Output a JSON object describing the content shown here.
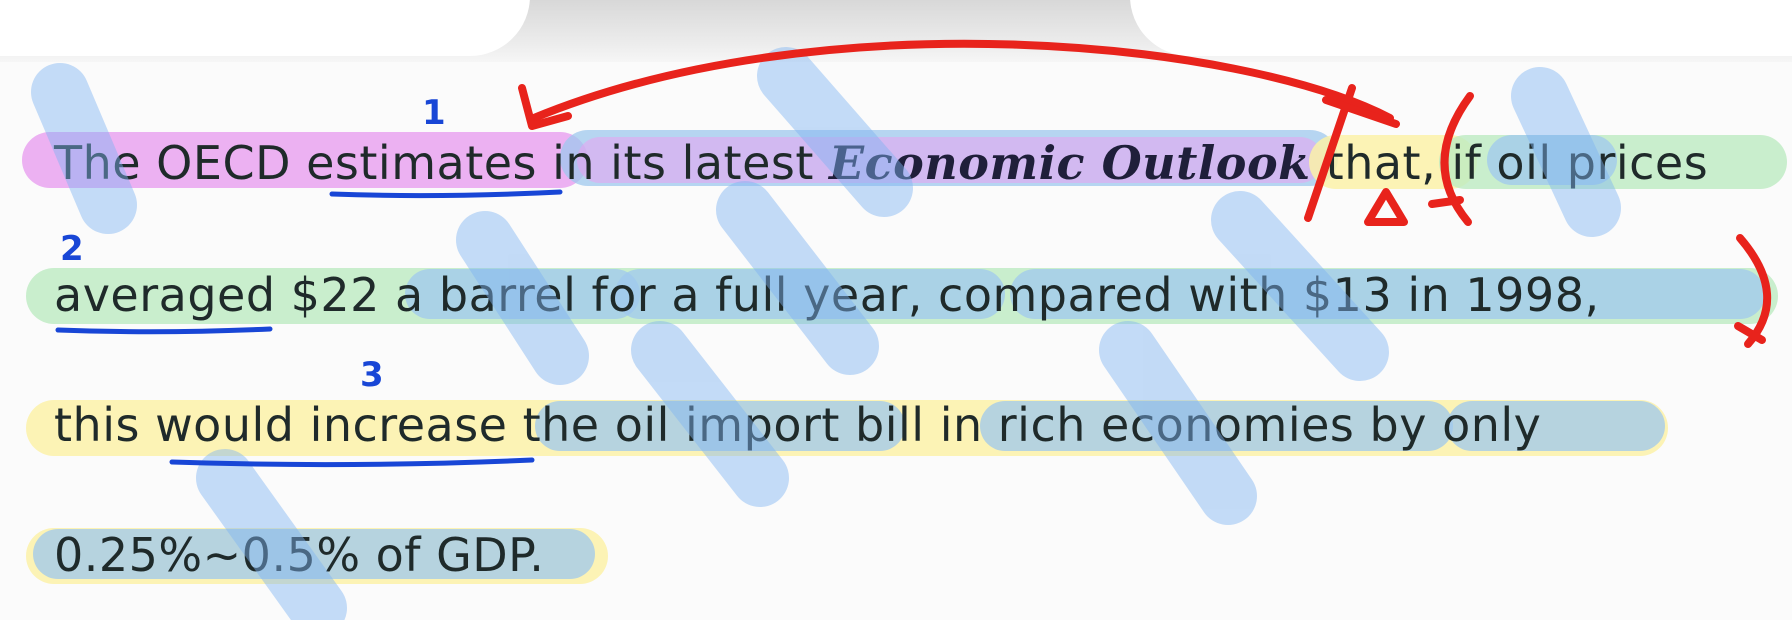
{
  "sentence": {
    "line1": {
      "part1": "The OECD ",
      "verb": "estimates",
      "part2": " in its latest ",
      "title": "Economic Outlook",
      "part3": " that, if oil prices"
    },
    "line2": {
      "verb": "averaged",
      "rest": " $22 a barrel for a full year, compared with $13 in 1998,"
    },
    "line3": {
      "part1": "this ",
      "verb": "would increase",
      "rest": " the oil import bill in rich economies by only"
    },
    "line4": {
      "text": "0.25%~0.5% of GDP."
    }
  },
  "annotations": {
    "verb_numbers": [
      "1",
      "2",
      "3"
    ],
    "colors": {
      "main_clause": "#e9a3f0",
      "conditional": "#bdebc2",
      "result": "#fbf1a8",
      "modifier": "#9fc8ee",
      "slash": "#7fb3f2",
      "verb_underline": "#1846d6",
      "red_pen": "#e8231c"
    }
  }
}
